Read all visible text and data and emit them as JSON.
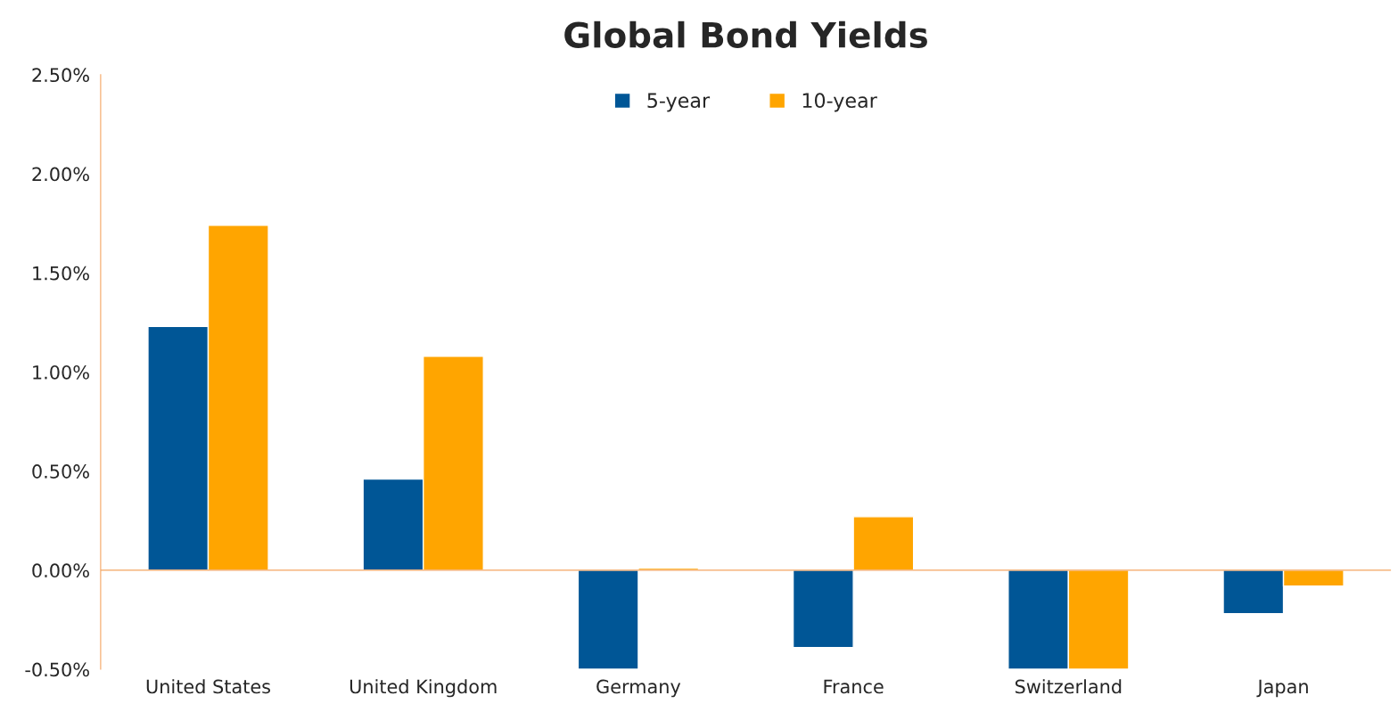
{
  "chart_data": {
    "type": "bar",
    "title": "Global Bond Yields",
    "categories": [
      "United States",
      "United Kingdom",
      "Germany",
      "France",
      "Switzerland",
      "Japan"
    ],
    "series": [
      {
        "name": "5-year",
        "color": "#005696",
        "values": [
          1.23,
          0.46,
          -0.5,
          -0.39,
          -0.5,
          -0.22
        ]
      },
      {
        "name": "10-year",
        "color": "#ffa500",
        "values": [
          1.74,
          1.08,
          0.01,
          0.27,
          -0.5,
          -0.08
        ]
      }
    ],
    "ylim": [
      -0.5,
      2.5
    ],
    "yticks": [
      {
        "value": -0.5,
        "label": "-0.50%"
      },
      {
        "value": 0,
        "label": "0.00%"
      },
      {
        "value": 0.5,
        "label": "0.50%"
      },
      {
        "value": 1,
        "label": "1.00%"
      },
      {
        "value": 1.5,
        "label": "1.50%"
      },
      {
        "value": 2,
        "label": "2.00%"
      },
      {
        "value": 2.5,
        "label": "2.50%"
      }
    ],
    "ref_lines": [
      {
        "axis": "y",
        "value": 0,
        "color": "#f4a460"
      }
    ],
    "grid": false,
    "legend": "top"
  }
}
